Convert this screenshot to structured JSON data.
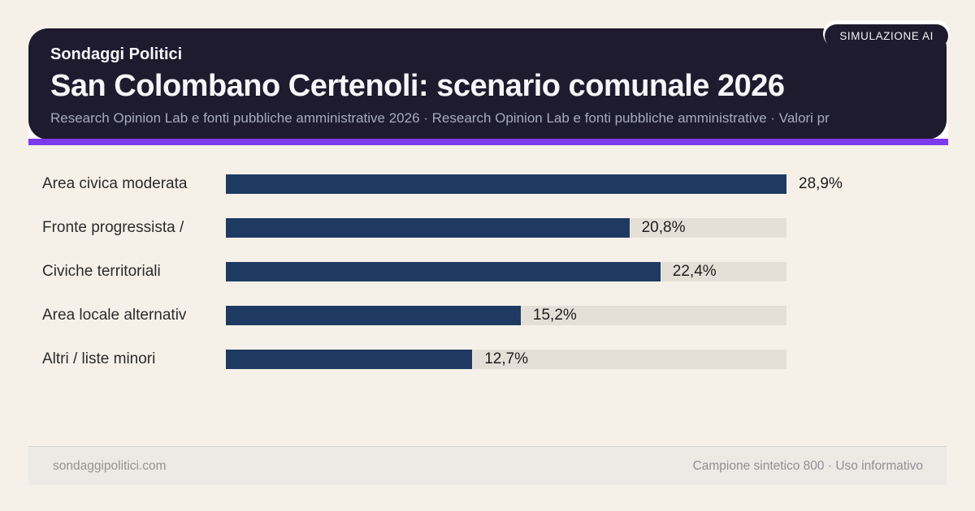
{
  "badge": {
    "label": "SIMULAZIONE AI"
  },
  "header": {
    "kicker": "Sondaggi Politici",
    "title": "San Colombano Certenoli: scenario comunale 2026",
    "subtitle": "Research Opinion Lab e fonti pubbliche amministrative 2026 · Research Opinion Lab e fonti pubbliche amministrative · Valori pr"
  },
  "chart_data": {
    "type": "bar",
    "orientation": "horizontal",
    "title": "San Colombano Certenoli: scenario comunale 2026",
    "categories": [
      "Area civica moderata",
      "Fronte progressista /",
      "Civiche territoriali",
      "Area locale alternativ",
      "Altri / liste minori"
    ],
    "values": [
      28.9,
      20.8,
      22.4,
      15.2,
      12.7
    ],
    "value_labels": [
      "28,9%",
      "20,8%",
      "22,4%",
      "15,2%",
      "12,7%"
    ],
    "unit": "%",
    "xlim": [
      0,
      28.9
    ],
    "grid": false,
    "legend": false,
    "bar_color": "#1f3a62",
    "track_color": "#e5e0d7"
  },
  "footer": {
    "left": "sondaggipolitici.com",
    "right": "Campione sintetico 800 · Uso informativo"
  },
  "colors": {
    "page_background": "#f5f1e9",
    "header_background": "#1e1b2e",
    "accent": "#7c3aed",
    "bar": "#1f3a62",
    "track": "#e5e0d7"
  }
}
